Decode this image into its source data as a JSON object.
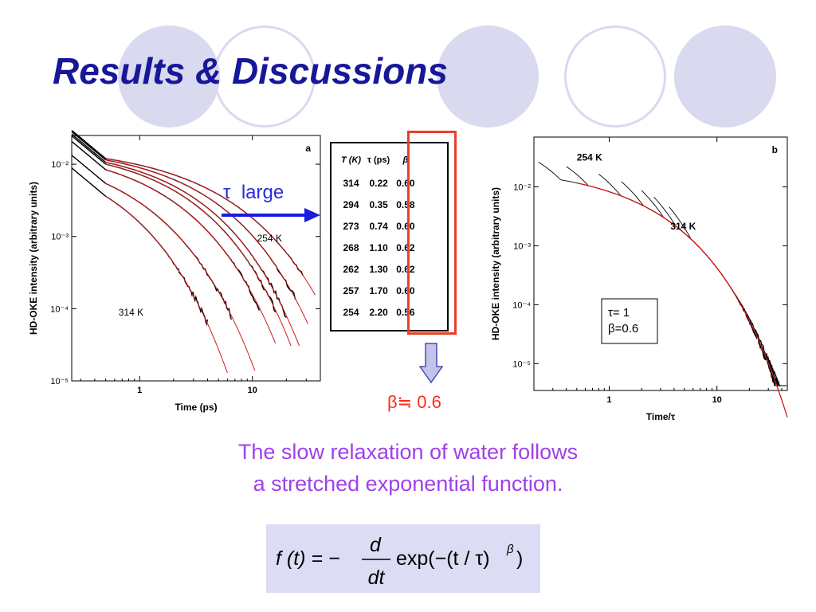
{
  "slide": {
    "title": "Results & Discussions",
    "tau_label": "τ  large",
    "beta_approx": "β≒ 0.6",
    "caption_line1": "The slow relaxation of water follows",
    "caption_line2": "a stretched exponential function.",
    "accent_color": "#17179a",
    "decor_color": "#d9d9ef",
    "highlight_color": "#e8402a",
    "caption_color": "#a040e8"
  },
  "table": {
    "headers": [
      "T (K)",
      "τ  (ps)",
      "β"
    ],
    "rows": [
      [
        "314",
        "0.22",
        "0.60"
      ],
      [
        "294",
        "0.35",
        "0.58"
      ],
      [
        "273",
        "0.74",
        "0.60"
      ],
      [
        "268",
        "1.10",
        "0.62"
      ],
      [
        "262",
        "1.30",
        "0.62"
      ],
      [
        "257",
        "1.70",
        "0.60"
      ],
      [
        "254",
        "2.20",
        "0.56"
      ]
    ]
  },
  "formula": {
    "lhs": "f (t) = −",
    "num": "d",
    "den": "dt",
    "rhs": "exp(−(t / τ)",
    "exp": "β",
    "close": ")"
  },
  "chart_data": [
    {
      "type": "line",
      "panel_label": "a",
      "xlabel": "Time (ps)",
      "ylabel": "HD-OKE intensity  (arbitrary  units)",
      "x_scale": "log",
      "y_scale": "log",
      "xlim": [
        0.25,
        40
      ],
      "ylim": [
        1e-05,
        0.025
      ],
      "x_ticks": [
        {
          "v": 1,
          "label": "1"
        },
        {
          "v": 10,
          "label": "10"
        }
      ],
      "y_ticks": [
        {
          "v": 0.01,
          "label": "10⁻²"
        },
        {
          "v": 0.001,
          "label": "10⁻³"
        },
        {
          "v": 0.0001,
          "label": "10⁻⁴"
        },
        {
          "v": 1e-05,
          "label": "10⁻⁵"
        }
      ],
      "annotations": [
        {
          "text": "254 K",
          "x": 11,
          "y": 0.00085
        },
        {
          "text": "314 K",
          "x": 0.65,
          "y": 8e-05
        }
      ],
      "series": [
        {
          "temp_K": 314,
          "tau_ps": 0.22,
          "beta": 0.6,
          "data_end": 4.0,
          "fit_end": 6.0
        },
        {
          "temp_K": 294,
          "tau_ps": 0.35,
          "beta": 0.58,
          "data_end": 6.5,
          "fit_end": 10.5
        },
        {
          "temp_K": 273,
          "tau_ps": 0.74,
          "beta": 0.6,
          "data_end": 11.5,
          "fit_end": 16
        },
        {
          "temp_K": 268,
          "tau_ps": 1.1,
          "beta": 0.62,
          "data_end": 16,
          "fit_end": 22
        },
        {
          "temp_K": 262,
          "tau_ps": 1.3,
          "beta": 0.62,
          "data_end": 20,
          "fit_end": 26
        },
        {
          "temp_K": 257,
          "tau_ps": 1.7,
          "beta": 0.6,
          "data_end": 24,
          "fit_end": 31
        },
        {
          "temp_K": 254,
          "tau_ps": 2.2,
          "beta": 0.56,
          "data_end": 28,
          "fit_end": 36
        }
      ]
    },
    {
      "type": "line",
      "panel_label": "b",
      "xlabel": "Time/τ",
      "ylabel": "HD-OKE intensity  (arbitrary  units)",
      "x_scale": "log",
      "y_scale": "log",
      "xlim": [
        0.2,
        45
      ],
      "ylim": [
        3.5e-06,
        0.07
      ],
      "x_ticks": [
        {
          "v": 1,
          "label": "1"
        },
        {
          "v": 10,
          "label": "10"
        }
      ],
      "y_ticks": [
        {
          "v": 0.01,
          "label": "10⁻²"
        },
        {
          "v": 0.001,
          "label": "10⁻³"
        },
        {
          "v": 0.0001,
          "label": "10⁻⁴"
        },
        {
          "v": 1e-05,
          "label": "10⁻⁵"
        }
      ],
      "annotations": [
        {
          "text": "254 K",
          "x": 0.5,
          "y": 0.028
        },
        {
          "text": "314 K",
          "x": 3.7,
          "y": 0.0019
        }
      ],
      "legend_lines": [
        "τ= 1",
        "β=0.6"
      ],
      "legend_placement": "center-right",
      "tau": 1,
      "beta": 0.6
    }
  ]
}
